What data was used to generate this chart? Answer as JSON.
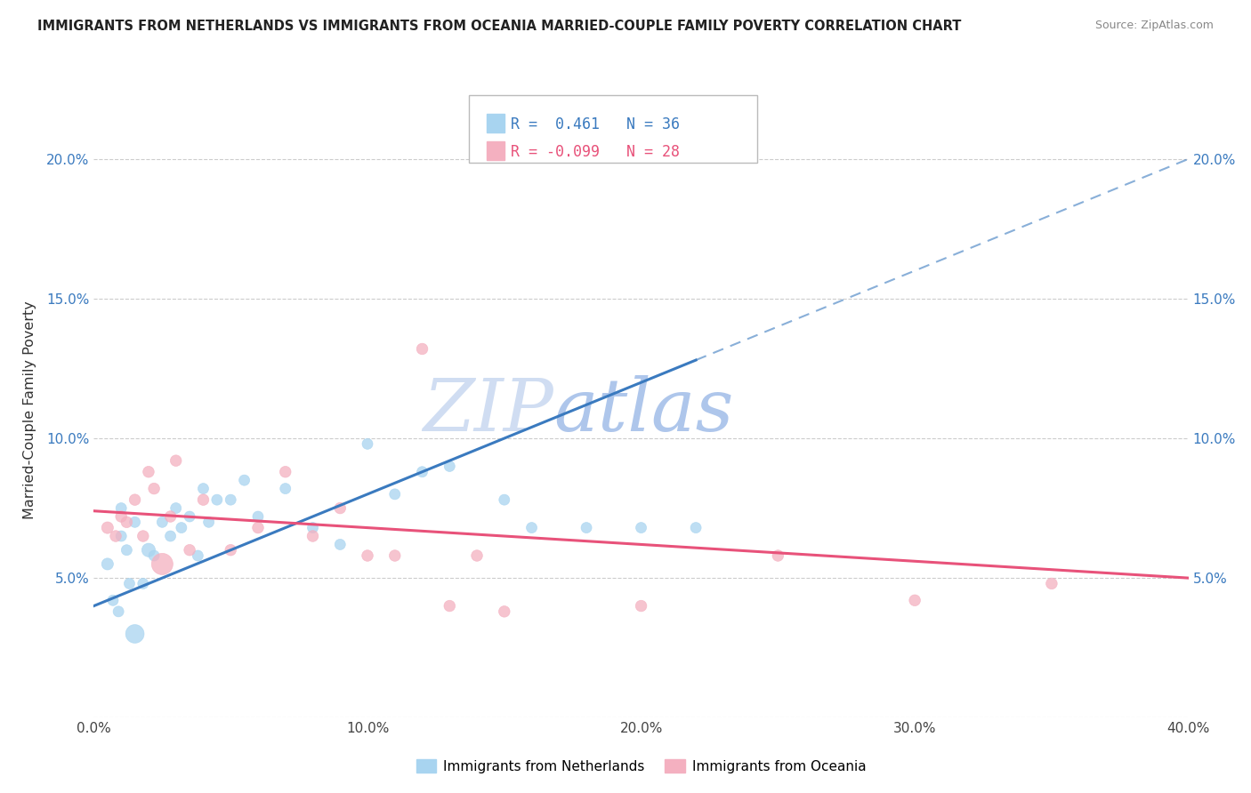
{
  "title": "IMMIGRANTS FROM NETHERLANDS VS IMMIGRANTS FROM OCEANIA MARRIED-COUPLE FAMILY POVERTY CORRELATION CHART",
  "source": "Source: ZipAtlas.com",
  "ylabel": "Married-Couple Family Poverty",
  "xmin": 0.0,
  "xmax": 0.4,
  "ymin": 0.0,
  "ymax": 0.22,
  "x_tick_labels": [
    "0.0%",
    "10.0%",
    "20.0%",
    "30.0%",
    "40.0%"
  ],
  "x_tick_values": [
    0.0,
    0.1,
    0.2,
    0.3,
    0.4
  ],
  "y_tick_labels": [
    "",
    "5.0%",
    "10.0%",
    "15.0%",
    "20.0%"
  ],
  "y_tick_values": [
    0.0,
    0.05,
    0.1,
    0.15,
    0.2
  ],
  "netherlands_color": "#a8d4f0",
  "oceania_color": "#f4b0c0",
  "netherlands_line_color": "#3a7abf",
  "oceania_line_color": "#e8527a",
  "tick_color": "#5b9bd5",
  "netherlands_R": 0.461,
  "netherlands_N": 36,
  "oceania_R": -0.099,
  "oceania_N": 28,
  "watermark_zip": "ZIP",
  "watermark_atlas": "atlas",
  "legend_label_netherlands": "Immigrants from Netherlands",
  "legend_label_oceania": "Immigrants from Oceania",
  "netherlands_scatter_x": [
    0.005,
    0.007,
    0.009,
    0.01,
    0.01,
    0.012,
    0.013,
    0.015,
    0.015,
    0.018,
    0.02,
    0.022,
    0.025,
    0.028,
    0.03,
    0.032,
    0.035,
    0.038,
    0.04,
    0.042,
    0.045,
    0.05,
    0.055,
    0.06,
    0.07,
    0.08,
    0.09,
    0.1,
    0.11,
    0.12,
    0.13,
    0.15,
    0.16,
    0.18,
    0.2,
    0.22
  ],
  "netherlands_scatter_y": [
    0.055,
    0.042,
    0.038,
    0.065,
    0.075,
    0.06,
    0.048,
    0.03,
    0.07,
    0.048,
    0.06,
    0.058,
    0.07,
    0.065,
    0.075,
    0.068,
    0.072,
    0.058,
    0.082,
    0.07,
    0.078,
    0.078,
    0.085,
    0.072,
    0.082,
    0.068,
    0.062,
    0.098,
    0.08,
    0.088,
    0.09,
    0.078,
    0.068,
    0.068,
    0.068,
    0.068
  ],
  "netherlands_scatter_size": [
    60,
    50,
    50,
    50,
    50,
    50,
    50,
    150,
    50,
    50,
    80,
    50,
    50,
    50,
    50,
    50,
    50,
    50,
    50,
    50,
    50,
    50,
    50,
    50,
    50,
    50,
    50,
    50,
    50,
    50,
    50,
    50,
    50,
    50,
    50,
    50
  ],
  "oceania_scatter_x": [
    0.005,
    0.008,
    0.01,
    0.012,
    0.015,
    0.018,
    0.02,
    0.022,
    0.025,
    0.028,
    0.03,
    0.035,
    0.04,
    0.05,
    0.06,
    0.07,
    0.08,
    0.09,
    0.1,
    0.11,
    0.12,
    0.13,
    0.14,
    0.15,
    0.2,
    0.25,
    0.3,
    0.35
  ],
  "oceania_scatter_y": [
    0.068,
    0.065,
    0.072,
    0.07,
    0.078,
    0.065,
    0.088,
    0.082,
    0.055,
    0.072,
    0.092,
    0.06,
    0.078,
    0.06,
    0.068,
    0.088,
    0.065,
    0.075,
    0.058,
    0.058,
    0.132,
    0.04,
    0.058,
    0.038,
    0.04,
    0.058,
    0.042,
    0.048
  ],
  "oceania_scatter_size": [
    60,
    55,
    55,
    55,
    55,
    55,
    55,
    55,
    200,
    55,
    55,
    55,
    55,
    55,
    55,
    55,
    55,
    55,
    55,
    55,
    55,
    55,
    55,
    55,
    55,
    55,
    55,
    55
  ],
  "nl_line_x0": 0.0,
  "nl_line_y0": 0.04,
  "nl_line_x1": 0.4,
  "nl_line_y1": 0.2,
  "oc_line_x0": 0.0,
  "oc_line_y0": 0.074,
  "oc_line_x1": 0.4,
  "oc_line_y1": 0.05
}
